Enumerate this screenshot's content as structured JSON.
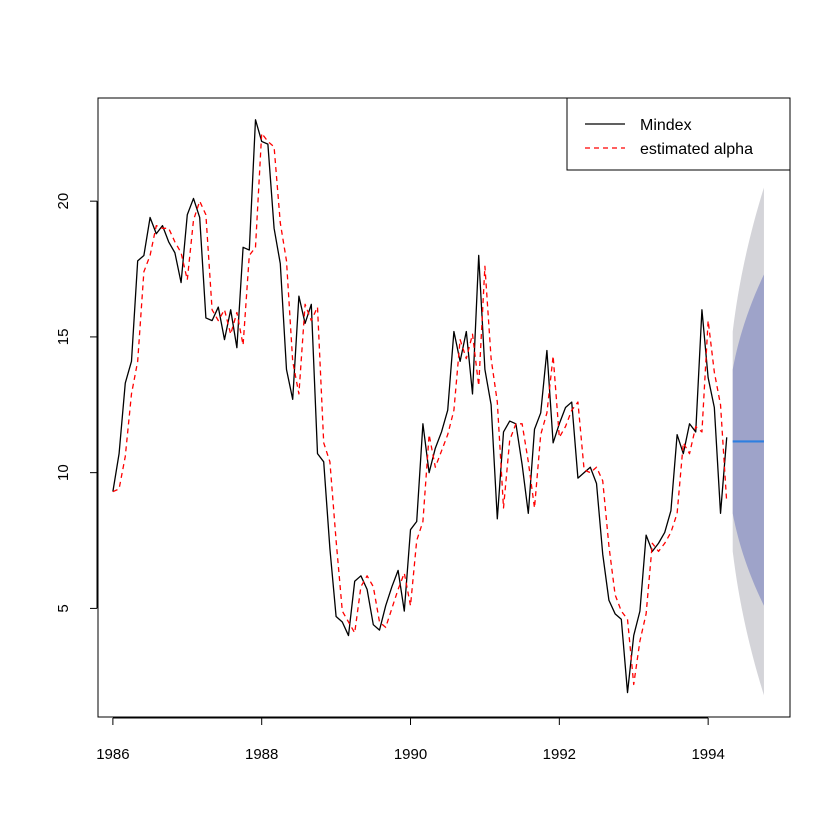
{
  "chart_data": {
    "type": "line",
    "title": "",
    "xlabel": "",
    "ylabel": "",
    "xlim": [
      1985.8,
      1995.1
    ],
    "ylim": [
      1.0,
      23.8
    ],
    "x_ticks": [
      1986,
      1988,
      1990,
      1992,
      1994
    ],
    "y_ticks": [
      5,
      10,
      15,
      20
    ],
    "grid": false,
    "legend": {
      "position": "top-right",
      "entries": [
        {
          "label": "Mindex",
          "color": "#000000",
          "linestyle": "solid"
        },
        {
          "label": "estimated alpha",
          "color": "#ff0000",
          "linestyle": "dashed"
        }
      ]
    },
    "series": [
      {
        "name": "Mindex",
        "color": "#000000",
        "linestyle": "solid",
        "x_start": 1986.0,
        "step": 0.08333,
        "values": [
          9.3,
          10.7,
          13.3,
          14.1,
          17.8,
          18.0,
          19.4,
          18.8,
          19.1,
          18.5,
          18.1,
          17.0,
          19.5,
          20.1,
          19.4,
          15.7,
          15.6,
          16.1,
          14.9,
          16.0,
          14.6,
          18.3,
          18.2,
          23.0,
          22.2,
          22.1,
          19.0,
          17.7,
          13.8,
          12.7,
          16.5,
          15.5,
          16.2,
          10.7,
          10.4,
          7.2,
          4.7,
          4.5,
          4.0,
          6.0,
          6.2,
          5.7,
          4.4,
          4.2,
          5.1,
          5.8,
          6.4,
          4.9,
          7.9,
          8.2,
          11.8,
          10.0,
          10.9,
          11.5,
          12.3,
          15.2,
          14.1,
          15.2,
          12.9,
          18.0,
          13.8,
          12.5,
          8.3,
          11.5,
          11.9,
          11.8,
          10.3,
          8.5,
          11.6,
          12.2,
          14.5,
          11.1,
          11.8,
          12.4,
          12.6,
          9.8,
          10.0,
          10.2,
          9.6,
          7.0,
          5.3,
          4.8,
          4.6,
          1.9,
          4.0,
          4.9,
          7.7,
          7.1,
          7.4,
          7.8,
          8.6,
          11.4,
          10.7,
          11.8,
          11.5,
          16.0,
          13.5,
          12.4,
          8.5,
          11.3
        ]
      },
      {
        "name": "estimated alpha",
        "color": "#ff0000",
        "linestyle": "dashed",
        "x_start": 1986.0,
        "step": 0.08333,
        "values": [
          9.3,
          9.4,
          10.6,
          12.9,
          14.1,
          17.4,
          18.0,
          19.1,
          19.0,
          19.0,
          18.5,
          18.1,
          17.1,
          19.3,
          20.0,
          19.5,
          16.0,
          15.6,
          16.0,
          15.1,
          15.9,
          14.7,
          18.0,
          18.3,
          22.5,
          22.2,
          22.0,
          19.2,
          17.8,
          14.1,
          12.9,
          16.2,
          15.6,
          16.1,
          11.1,
          10.4,
          7.5,
          4.9,
          4.5,
          4.1,
          5.8,
          6.2,
          5.8,
          4.5,
          4.3,
          5.0,
          5.7,
          6.3,
          5.1,
          7.5,
          8.2,
          11.4,
          10.2,
          10.8,
          11.4,
          12.3,
          14.9,
          14.2,
          15.1,
          13.2,
          17.6,
          14.2,
          12.6,
          8.7,
          11.2,
          11.8,
          11.8,
          10.4,
          8.7,
          11.4,
          12.2,
          14.3,
          11.3,
          11.7,
          12.3,
          12.6,
          10.1,
          10.0,
          10.2,
          9.7,
          7.3,
          5.5,
          4.9,
          4.6,
          2.2,
          3.8,
          4.8,
          7.4,
          7.1,
          7.4,
          7.8,
          8.5,
          11.1,
          10.7,
          11.7,
          11.5,
          15.6,
          13.7,
          12.5,
          8.9
        ]
      }
    ],
    "forecast": {
      "x_start": 1994.33,
      "x_end": 1994.75,
      "mean": 11.15,
      "mean_color": "#2e7fe0",
      "band_80": {
        "lower_start": 8.5,
        "lower_end": 5.1,
        "upper_start": 13.8,
        "upper_end": 17.3,
        "color": "#9ea3c9"
      },
      "band_95": {
        "lower_start": 7.1,
        "lower_end": 1.8,
        "upper_start": 15.2,
        "upper_end": 20.5,
        "color": "#d4d4d9"
      }
    }
  }
}
